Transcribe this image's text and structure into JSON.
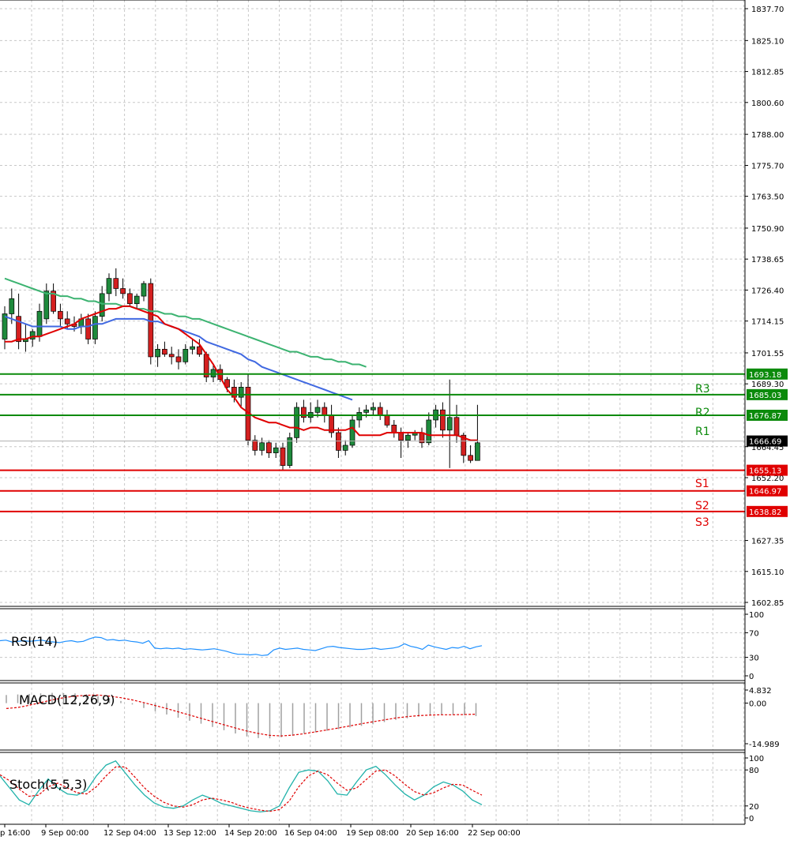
{
  "chart_data": [
    {
      "type": "candlestick",
      "panel": "price",
      "y_ticks": [
        "1837.70",
        "1825.10",
        "1812.85",
        "1800.60",
        "1788.00",
        "1775.70",
        "1763.50",
        "1750.90",
        "1738.65",
        "1726.40",
        "1714.15",
        "1701.55",
        "1689.30",
        "1664.45",
        "1652.20",
        "1627.35",
        "1615.10",
        "1602.85"
      ],
      "ylim": [
        1600,
        1840
      ],
      "x_ticks": [
        "p 16:00",
        "9 Sep 00:00",
        "12 Sep 04:00",
        "13 Sep 12:00",
        "14 Sep 20:00",
        "16 Sep 04:00",
        "19 Sep 08:00",
        "20 Sep 16:00",
        "22 Sep 00:00"
      ],
      "candles": [
        [
          1707,
          1720,
          1703,
          1717
        ],
        [
          1717,
          1727,
          1713,
          1723
        ],
        [
          1716,
          1725,
          1703,
          1706
        ],
        [
          1706,
          1713,
          1702,
          1707
        ],
        [
          1707,
          1711,
          1704,
          1710
        ],
        [
          1708,
          1721,
          1706,
          1718
        ],
        [
          1715,
          1729,
          1713,
          1726
        ],
        [
          1726,
          1729,
          1717,
          1718
        ],
        [
          1718,
          1721,
          1712,
          1715
        ],
        [
          1715,
          1718,
          1711,
          1713
        ],
        [
          1713,
          1716,
          1710,
          1712
        ],
        [
          1712,
          1717,
          1709,
          1715
        ],
        [
          1715,
          1717,
          1705,
          1707
        ],
        [
          1707,
          1718,
          1705,
          1716
        ],
        [
          1716,
          1728,
          1714,
          1725
        ],
        [
          1725,
          1733,
          1722,
          1731
        ],
        [
          1731,
          1735,
          1724,
          1727
        ],
        [
          1727,
          1731,
          1723,
          1725
        ],
        [
          1725,
          1727,
          1720,
          1721
        ],
        [
          1721,
          1725,
          1719,
          1724
        ],
        [
          1724,
          1730,
          1722,
          1729
        ],
        [
          1729,
          1731,
          1697,
          1700
        ],
        [
          1700,
          1705,
          1696,
          1703
        ],
        [
          1703,
          1706,
          1700,
          1701
        ],
        [
          1701,
          1704,
          1697,
          1700
        ],
        [
          1700,
          1703,
          1695,
          1698
        ],
        [
          1698,
          1705,
          1697,
          1703
        ],
        [
          1703,
          1707,
          1701,
          1704
        ],
        [
          1704,
          1707,
          1700,
          1701
        ],
        [
          1701,
          1702,
          1690,
          1692
        ],
        [
          1692,
          1697,
          1690,
          1695
        ],
        [
          1695,
          1697,
          1690,
          1691
        ],
        [
          1691,
          1692,
          1686,
          1688
        ],
        [
          1688,
          1691,
          1682,
          1684
        ],
        [
          1684,
          1690,
          1680,
          1688
        ],
        [
          1688,
          1693,
          1665,
          1667
        ],
        [
          1667,
          1669,
          1661,
          1663
        ],
        [
          1663,
          1668,
          1661,
          1666
        ],
        [
          1666,
          1667,
          1660,
          1662
        ],
        [
          1662,
          1666,
          1660,
          1664
        ],
        [
          1664,
          1666,
          1655,
          1657
        ],
        [
          1657,
          1670,
          1656,
          1668
        ],
        [
          1668,
          1682,
          1666,
          1680
        ],
        [
          1680,
          1683,
          1674,
          1676
        ],
        [
          1676,
          1682,
          1674,
          1678
        ],
        [
          1678,
          1683,
          1676,
          1680
        ],
        [
          1680,
          1682,
          1674,
          1677
        ],
        [
          1677,
          1681,
          1668,
          1670
        ],
        [
          1670,
          1672,
          1660,
          1663
        ],
        [
          1663,
          1667,
          1661,
          1665
        ],
        [
          1665,
          1677,
          1664,
          1675
        ],
        [
          1675,
          1680,
          1672,
          1678
        ],
        [
          1678,
          1681,
          1676,
          1679
        ],
        [
          1679,
          1682,
          1677,
          1680
        ],
        [
          1680,
          1682,
          1675,
          1677
        ],
        [
          1677,
          1679,
          1672,
          1673
        ],
        [
          1673,
          1675,
          1668,
          1670
        ],
        [
          1670,
          1672,
          1660,
          1667
        ],
        [
          1667,
          1670,
          1664,
          1669
        ],
        [
          1669,
          1671,
          1667,
          1670
        ],
        [
          1670,
          1672,
          1664,
          1666
        ],
        [
          1666,
          1678,
          1665,
          1675
        ],
        [
          1675,
          1681,
          1672,
          1679
        ],
        [
          1679,
          1682,
          1668,
          1671
        ],
        [
          1671,
          1691,
          1656,
          1676
        ],
        [
          1676,
          1681,
          1666,
          1669
        ],
        [
          1669,
          1670,
          1658,
          1661
        ],
        [
          1661,
          1665,
          1658,
          1659
        ],
        [
          1659,
          1681,
          1659,
          1666
        ]
      ],
      "ma_red": [
        1706,
        1706,
        1707,
        1707,
        1708,
        1708,
        1709,
        1710,
        1711,
        1712,
        1713,
        1715,
        1716,
        1717,
        1718,
        1719,
        1719,
        1720,
        1720,
        1719,
        1718,
        1717,
        1716,
        1713,
        1712,
        1711,
        1709,
        1707,
        1705,
        1701,
        1697,
        1692,
        1687,
        1684,
        1680,
        1678,
        1676,
        1675,
        1674,
        1674,
        1673,
        1672,
        1672,
        1671,
        1672,
        1672,
        1671,
        1671,
        1671,
        1671,
        1672,
        1669,
        1669,
        1669,
        1669,
        1670,
        1670,
        1670,
        1670,
        1670,
        1670,
        1669,
        1669,
        1669,
        1669,
        1669,
        1668,
        1667,
        1667
      ],
      "ma_blue": [
        1716,
        1715,
        1714,
        1713,
        1712,
        1712,
        1712,
        1712,
        1712,
        1711,
        1711,
        1712,
        1712,
        1713,
        1713,
        1714,
        1715,
        1715,
        1715,
        1715,
        1715,
        1714,
        1714,
        1713,
        1712,
        1711,
        1710,
        1709,
        1708,
        1706,
        1705,
        1704,
        1703,
        1702,
        1701,
        1699,
        1698,
        1696,
        1695,
        1694,
        1693,
        1692,
        1691,
        1690,
        1689,
        1688,
        1687,
        1686,
        1685,
        1684,
        1683
      ],
      "ma_green": [
        1731,
        1730,
        1729,
        1728,
        1727,
        1726,
        1725,
        1725,
        1724,
        1724,
        1723,
        1723,
        1722,
        1722,
        1721,
        1721,
        1721,
        1720,
        1720,
        1719,
        1719,
        1718,
        1718,
        1717,
        1717,
        1716,
        1716,
        1715,
        1715,
        1714,
        1713,
        1712,
        1711,
        1710,
        1709,
        1708,
        1707,
        1706,
        1705,
        1704,
        1703,
        1702,
        1702,
        1701,
        1700,
        1700,
        1699,
        1699,
        1698,
        1698,
        1697,
        1697,
        1696
      ],
      "current_price": "1666.69",
      "levels": [
        {
          "name": "R3",
          "value": 1693.18,
          "tag": "1693.18",
          "color": "#0b8a0b"
        },
        {
          "name": "R2",
          "value": 1685.03,
          "tag": "1685.03",
          "color": "#0b8a0b"
        },
        {
          "name": "R1",
          "value": 1676.87,
          "tag": "1676.87",
          "color": "#0b8a0b"
        },
        {
          "name": "S1",
          "value": 1655.13,
          "tag": "1655.13",
          "color": "#e00000"
        },
        {
          "name": "S2",
          "value": 1646.97,
          "tag": "1646.97",
          "color": "#e00000"
        },
        {
          "name": "S3",
          "value": 1638.82,
          "tag": "1638.82",
          "color": "#e00000"
        }
      ]
    },
    {
      "type": "line",
      "panel": "rsi",
      "title": "RSI(14)",
      "ylim": [
        0,
        100
      ],
      "y_ticks": [
        "100",
        "70",
        "30",
        "0"
      ],
      "values": [
        57,
        58,
        55,
        56,
        57,
        56,
        57,
        58,
        56,
        55,
        54,
        56,
        57,
        55,
        56,
        60,
        63,
        62,
        58,
        59,
        57,
        58,
        56,
        55,
        53,
        57,
        45,
        44,
        45,
        44,
        45,
        43,
        44,
        43,
        42,
        43,
        44,
        42,
        40,
        37,
        35,
        35,
        34,
        35,
        33,
        34,
        42,
        45,
        43,
        44,
        45,
        43,
        42,
        41,
        44,
        47,
        48,
        46,
        45,
        44,
        43,
        43,
        44,
        45,
        43,
        44,
        45,
        47,
        52,
        48,
        46,
        43,
        50,
        47,
        45,
        43,
        46,
        45,
        48,
        44,
        47,
        49
      ]
    },
    {
      "type": "bar",
      "panel": "macd",
      "title": "MACD(12,26,9)",
      "ylim": [
        -14.989,
        4.832
      ],
      "y_ticks": [
        "4.832",
        "0.00",
        "-14.989"
      ],
      "histogram": [
        3.0,
        3.2,
        3.4,
        3.6,
        3.8,
        3.7,
        3.6,
        3.3,
        2.6,
        1.8,
        0.8,
        -0.5,
        -1.8,
        -3.0,
        -4.2,
        -5.4,
        -6.5,
        -7.6,
        -8.8,
        -10.0,
        -11.2,
        -12.3,
        -12.9,
        -13.0,
        -12.6,
        -12.0,
        -11.3,
        -10.8,
        -10.2,
        -9.6,
        -9.0,
        -8.4,
        -7.8,
        -7.0,
        -6.2,
        -5.6,
        -5.0,
        -4.6,
        -4.4,
        -4.3,
        -4.5,
        -4.8
      ],
      "signal": [
        -2.0,
        -1.6,
        -0.8,
        0.2,
        1.2,
        2.0,
        2.6,
        2.9,
        3.0,
        2.6,
        2.0,
        1.2,
        0.2,
        -0.9,
        -2.0,
        -3.2,
        -4.4,
        -5.6,
        -6.8,
        -8.0,
        -9.2,
        -10.3,
        -11.2,
        -11.9,
        -12.1,
        -11.8,
        -11.3,
        -10.6,
        -9.9,
        -9.2,
        -8.4,
        -7.6,
        -6.9,
        -6.2,
        -5.5,
        -5.0,
        -4.6,
        -4.4,
        -4.3,
        -4.3,
        -4.2,
        -4.1
      ]
    },
    {
      "type": "line",
      "panel": "stoch",
      "title": "Stoch(5,5,3)",
      "ylim": [
        0,
        100
      ],
      "y_ticks": [
        "100",
        "80",
        "20",
        "0"
      ],
      "main": [
        70,
        50,
        30,
        22,
        45,
        65,
        50,
        40,
        38,
        46,
        70,
        88,
        95,
        75,
        55,
        38,
        25,
        18,
        16,
        20,
        30,
        38,
        32,
        24,
        20,
        16,
        12,
        10,
        12,
        20,
        50,
        76,
        80,
        78,
        62,
        40,
        38,
        60,
        80,
        86,
        72,
        55,
        40,
        30,
        38,
        52,
        60,
        55,
        45,
        30,
        22
      ],
      "signal": [
        72,
        62,
        48,
        36,
        38,
        52,
        58,
        50,
        42,
        40,
        52,
        70,
        85,
        85,
        68,
        50,
        36,
        26,
        20,
        18,
        22,
        30,
        33,
        30,
        26,
        20,
        16,
        13,
        11,
        14,
        28,
        52,
        70,
        78,
        72,
        58,
        46,
        50,
        64,
        78,
        80,
        70,
        56,
        44,
        38,
        42,
        50,
        56,
        55,
        46,
        38
      ]
    }
  ]
}
